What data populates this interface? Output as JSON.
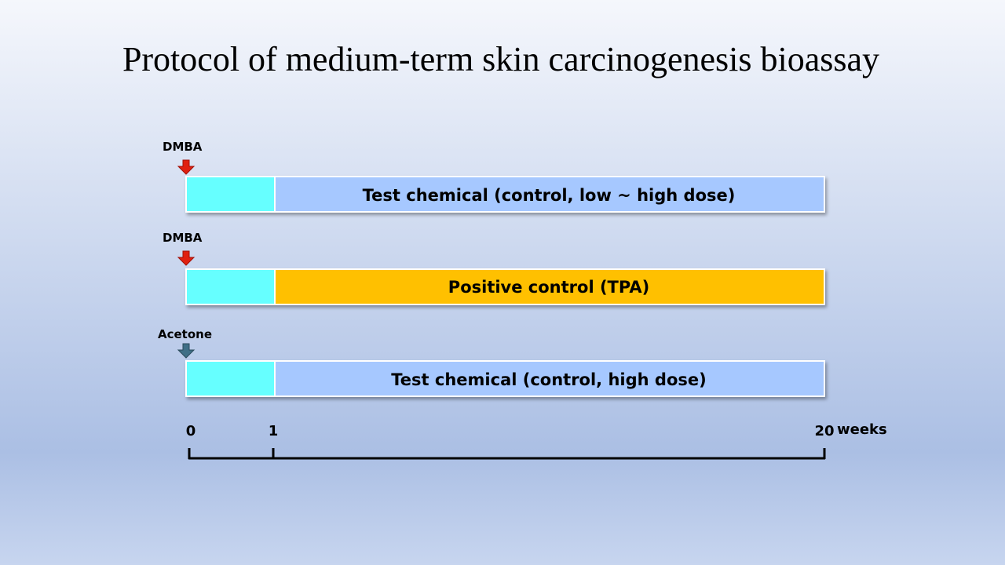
{
  "title": "Protocol of medium-term skin carcinogenesis bioassay",
  "rows": [
    {
      "marker": "DMBA",
      "label": "Test chemical (control, low ~ high dose)"
    },
    {
      "marker": "DMBA",
      "label": "Positive control (TPA)"
    },
    {
      "marker": "Acetone",
      "label": "Test chemical (control, high dose)"
    }
  ],
  "timeline": {
    "ticks": [
      "0",
      "1",
      "20"
    ],
    "unit": "weeks"
  }
}
